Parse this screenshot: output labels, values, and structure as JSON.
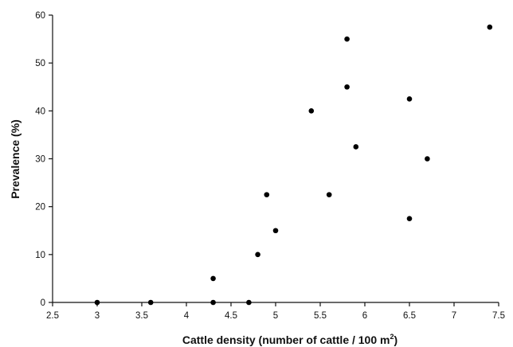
{
  "chart_data": {
    "type": "scatter",
    "xlabel_main": "Cattle density (number of cattle / 100 m",
    "xlabel_sup": "2",
    "xlabel_end": ")",
    "ylabel": "Prevalence (%)",
    "xlim": [
      2.5,
      7.5
    ],
    "ylim": [
      0,
      60
    ],
    "x_ticks": [
      2.5,
      3,
      3.5,
      4,
      4.5,
      5,
      5.5,
      6,
      6.5,
      7,
      7.5
    ],
    "x_tick_labels": [
      "2.5",
      "3",
      "3.5",
      "4",
      "4.5",
      "5",
      "5.5",
      "6",
      "6.5",
      "7",
      "7.5"
    ],
    "y_ticks": [
      0,
      10,
      20,
      30,
      40,
      50,
      60
    ],
    "y_tick_labels": [
      "0",
      "10",
      "20",
      "30",
      "40",
      "50",
      "60"
    ],
    "grid": false,
    "marker_color": "#000000",
    "points": [
      {
        "x": 3.0,
        "y": 0
      },
      {
        "x": 3.6,
        "y": 0
      },
      {
        "x": 4.3,
        "y": 0
      },
      {
        "x": 4.7,
        "y": 0
      },
      {
        "x": 4.3,
        "y": 5
      },
      {
        "x": 4.8,
        "y": 10
      },
      {
        "x": 5.0,
        "y": 15
      },
      {
        "x": 4.9,
        "y": 22.5
      },
      {
        "x": 5.4,
        "y": 40
      },
      {
        "x": 5.6,
        "y": 22.5
      },
      {
        "x": 5.8,
        "y": 55
      },
      {
        "x": 5.8,
        "y": 45
      },
      {
        "x": 5.9,
        "y": 32.5
      },
      {
        "x": 6.5,
        "y": 42.5
      },
      {
        "x": 6.5,
        "y": 17.5
      },
      {
        "x": 6.7,
        "y": 30
      },
      {
        "x": 7.4,
        "y": 57.5
      }
    ]
  }
}
